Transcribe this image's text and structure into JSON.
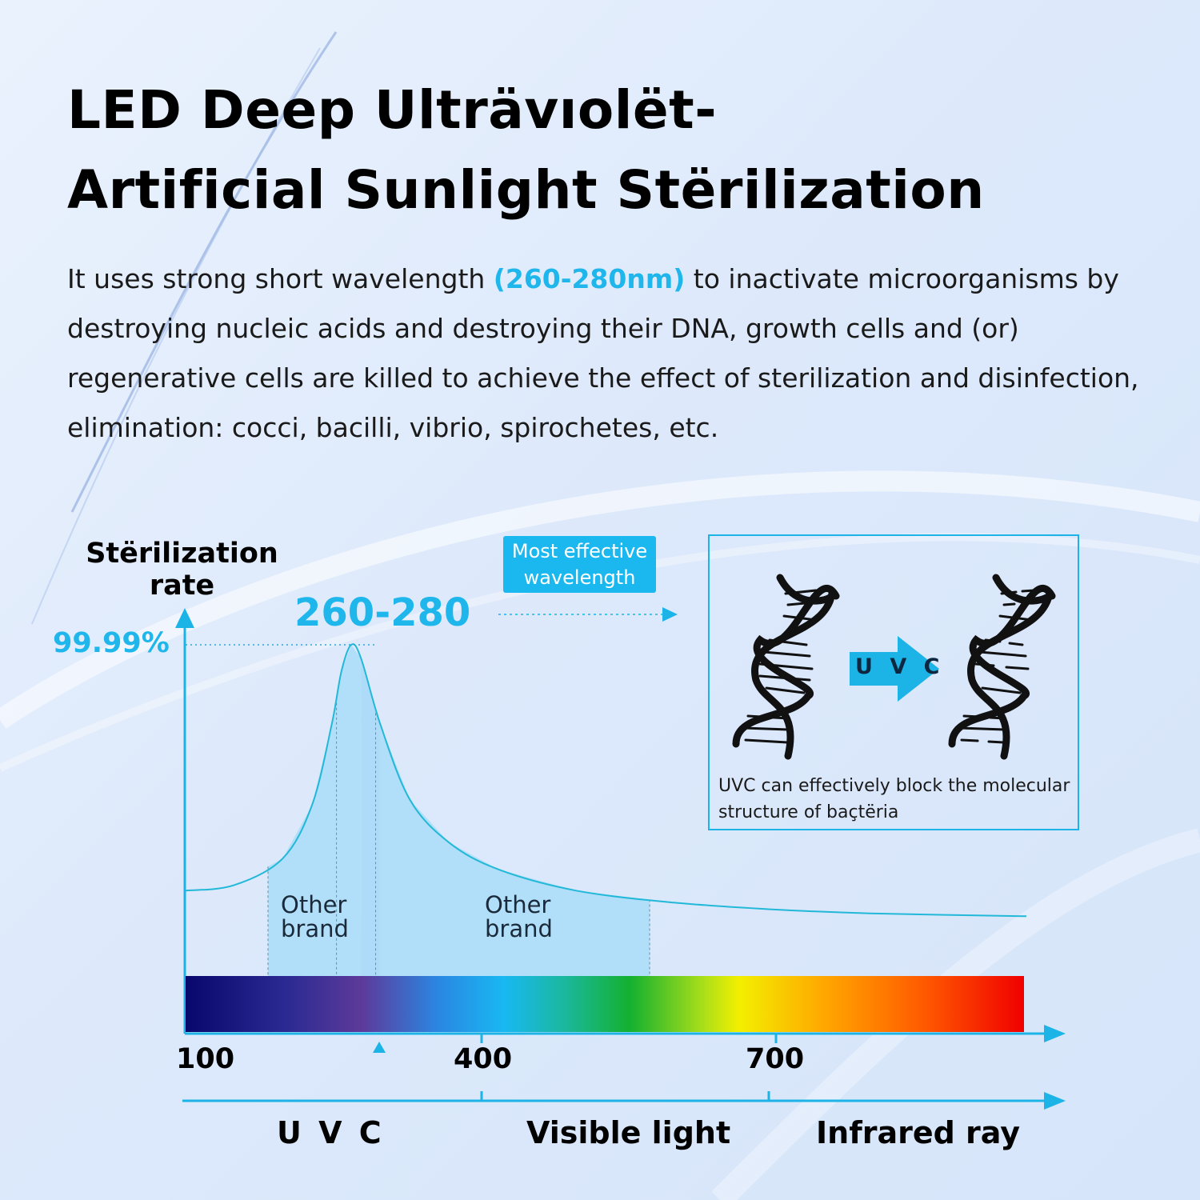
{
  "title": {
    "line1": "LED Deep Ulträvıolët-",
    "line2": "Artificial Sunlight Stërilization"
  },
  "description": {
    "pre": "It uses strong short wavelength ",
    "highlight": "(260-280nm)",
    "post": " to inactivate microorganisms by destroying nucleic acids and destroying their DNA, growth cells and (or) regenerative cells are killed to achieve the effect of sterilization and disinfection, elimination: cocci, bacilli, vibrio, spirochetes, etc."
  },
  "chart": {
    "y_axis_label": "Stërilization rate",
    "peak_value_label": "99.99%",
    "peak_range_label": "260-280",
    "badge": "Most effective wavelength",
    "band_label_left": "Other brand",
    "band_label_right": "Other brand",
    "x_ticks": [
      "100",
      "400",
      "700"
    ],
    "regions": [
      "U V C",
      "Visible light",
      "Infrared ray"
    ]
  },
  "dna_panel": {
    "arrow_label": "U V C",
    "caption": "UVC can effectively block the molecular structure of baçtëria"
  },
  "colors": {
    "accent": "#1fb6ec",
    "curve": "#22b8d8",
    "fill": "#a9dcf7"
  },
  "chart_data": {
    "type": "area",
    "xlabel": "",
    "ylabel": "Stërilization rate",
    "x_ticks": [
      100,
      400,
      700
    ],
    "x": [
      100,
      150,
      200,
      230,
      250,
      260,
      270,
      280,
      300,
      330,
      370,
      420,
      500,
      600,
      700,
      800,
      960
    ],
    "y": [
      8,
      10,
      20,
      40,
      70,
      90,
      99.99,
      95,
      70,
      42,
      26,
      16,
      8,
      3.5,
      1,
      -0.5,
      -1.6
    ],
    "peak": {
      "x_range": [
        260,
        280
      ],
      "y": 99.99
    },
    "highlight_ranges": [
      [
        185,
        280
      ],
      [
        300,
        575
      ]
    ]
  }
}
